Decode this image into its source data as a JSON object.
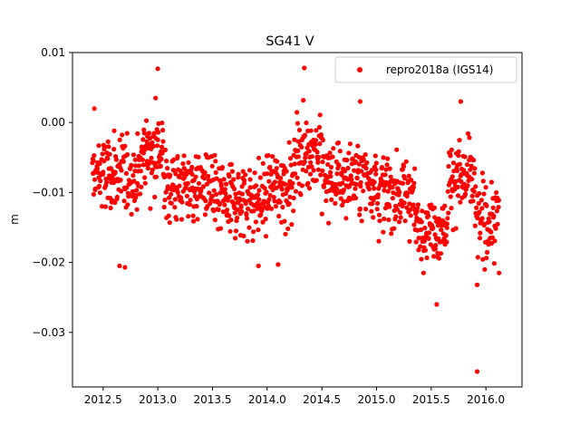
{
  "chart_data": {
    "type": "scatter",
    "title": "SG41 V",
    "xlabel": "",
    "ylabel": "m",
    "xlim": [
      2012.22,
      2016.33
    ],
    "ylim": [
      -0.0378,
      0.01
    ],
    "xticks": [
      2012.5,
      2013.0,
      2013.5,
      2014.0,
      2014.5,
      2015.0,
      2015.5,
      2016.0
    ],
    "xtick_labels": [
      "2012.5",
      "2013.0",
      "2013.5",
      "2014.0",
      "2014.5",
      "2015.0",
      "2015.5",
      "2016.0"
    ],
    "yticks": [
      0.01,
      0.0,
      -0.01,
      -0.02,
      -0.03
    ],
    "ytick_labels": [
      "0.01",
      "0.00",
      "−0.01",
      "−0.02",
      "−0.03"
    ],
    "grid": false,
    "legend_position": "top-right",
    "series": [
      {
        "name": "repro2018a (IGS14)",
        "color": "#ff0000",
        "marker": "circle",
        "segments": [
          {
            "start": 2012.4,
            "end": 2012.85,
            "mean": -0.0075,
            "spread": 0.0045
          },
          {
            "start": 2012.85,
            "end": 2013.05,
            "mean": -0.004,
            "spread": 0.0045
          },
          {
            "start": 2013.05,
            "end": 2013.5,
            "mean": -0.009,
            "spread": 0.0045
          },
          {
            "start": 2013.5,
            "end": 2014.0,
            "mean": -0.011,
            "spread": 0.0045
          },
          {
            "start": 2014.0,
            "end": 2014.25,
            "mean": -0.009,
            "spread": 0.0045
          },
          {
            "start": 2014.25,
            "end": 2014.5,
            "mean": -0.004,
            "spread": 0.0045
          },
          {
            "start": 2014.5,
            "end": 2015.0,
            "mean": -0.008,
            "spread": 0.0045
          },
          {
            "start": 2015.0,
            "end": 2015.35,
            "mean": -0.01,
            "spread": 0.0045
          },
          {
            "start": 2015.35,
            "end": 2015.65,
            "mean": -0.015,
            "spread": 0.0035
          },
          {
            "start": 2015.65,
            "end": 2015.9,
            "mean": -0.008,
            "spread": 0.0045
          },
          {
            "start": 2015.9,
            "end": 2016.12,
            "mean": -0.014,
            "spread": 0.0045
          }
        ],
        "point_count": 1150,
        "outliers": [
          {
            "x": 2013.0,
            "y": 0.0077
          },
          {
            "x": 2014.34,
            "y": 0.0078
          },
          {
            "x": 2015.55,
            "y": -0.026
          },
          {
            "x": 2015.92,
            "y": -0.0232
          },
          {
            "x": 2015.92,
            "y": -0.0356
          },
          {
            "x": 2012.65,
            "y": -0.0205
          },
          {
            "x": 2012.7,
            "y": -0.0207
          },
          {
            "x": 2013.92,
            "y": -0.0205
          },
          {
            "x": 2014.1,
            "y": -0.0203
          },
          {
            "x": 2012.42,
            "y": 0.002
          },
          {
            "x": 2012.98,
            "y": 0.0035
          },
          {
            "x": 2014.85,
            "y": 0.003
          },
          {
            "x": 2015.77,
            "y": 0.003
          },
          {
            "x": 2016.12,
            "y": -0.0215
          }
        ]
      }
    ]
  }
}
